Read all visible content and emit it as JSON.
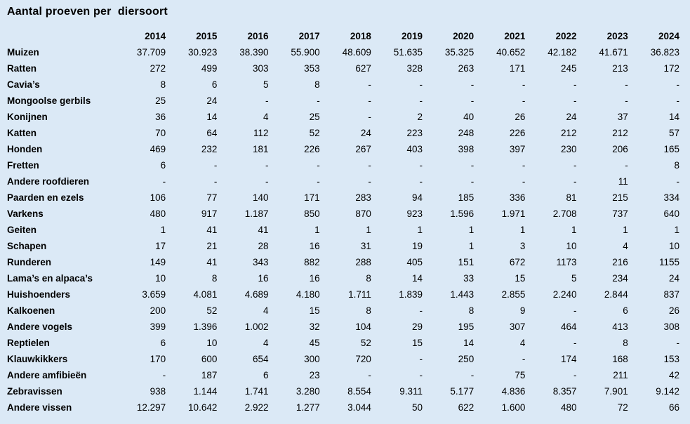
{
  "title": "Aantal proeven per  diersoort",
  "colors": {
    "background": "#dbe9f6",
    "text": "#000000"
  },
  "chart_data": {
    "type": "table",
    "title": "Aantal proeven per  diersoort",
    "year_headers": [
      "2014",
      "2015",
      "2016",
      "2017",
      "2018",
      "2019",
      "2020",
      "2021",
      "2022",
      "2023",
      "2024"
    ],
    "rows": [
      {
        "label": "Muizen",
        "values": [
          "37.709",
          "30.923",
          "38.390",
          "55.900",
          "48.609",
          "51.635",
          "35.325",
          "40.652",
          "42.182",
          "41.671",
          "36.823"
        ]
      },
      {
        "label": "Ratten",
        "values": [
          "272",
          "499",
          "303",
          "353",
          "627",
          "328",
          "263",
          "171",
          "245",
          "213",
          "172"
        ]
      },
      {
        "label": "Cavia’s",
        "values": [
          "8",
          "6",
          "5",
          "8",
          "-",
          "-",
          "-",
          "-",
          "-",
          "-",
          "-"
        ]
      },
      {
        "label": "Mongoolse gerbils",
        "values": [
          "25",
          "24",
          "-",
          "-",
          "-",
          "-",
          "-",
          "-",
          "-",
          "-",
          "-"
        ]
      },
      {
        "label": "Konijnen",
        "values": [
          "36",
          "14",
          "4",
          "25",
          "-",
          "2",
          "40",
          "26",
          "24",
          "37",
          "14"
        ]
      },
      {
        "label": "Katten",
        "values": [
          "70",
          "64",
          "112",
          "52",
          "24",
          "223",
          "248",
          "226",
          "212",
          "212",
          "57"
        ]
      },
      {
        "label": "Honden",
        "values": [
          "469",
          "232",
          "181",
          "226",
          "267",
          "403",
          "398",
          "397",
          "230",
          "206",
          "165"
        ]
      },
      {
        "label": "Fretten",
        "values": [
          "6",
          "-",
          "-",
          "-",
          "-",
          "-",
          "-",
          "-",
          "-",
          "-",
          "8"
        ]
      },
      {
        "label": "Andere roofdieren",
        "values": [
          "-",
          "-",
          "-",
          "-",
          "-",
          "-",
          "-",
          "-",
          "-",
          "11",
          "-"
        ]
      },
      {
        "label": "Paarden en ezels",
        "values": [
          "106",
          "77",
          "140",
          "171",
          "283",
          "94",
          "185",
          "336",
          "81",
          "215",
          "334"
        ]
      },
      {
        "label": "Varkens",
        "values": [
          "480",
          "917",
          "1.187",
          "850",
          "870",
          "923",
          "1.596",
          "1.971",
          "2.708",
          "737",
          "640"
        ]
      },
      {
        "label": "Geiten",
        "values": [
          "1",
          "41",
          "41",
          "1",
          "1",
          "1",
          "1",
          "1",
          "1",
          "1",
          "1"
        ]
      },
      {
        "label": "Schapen",
        "values": [
          "17",
          "21",
          "28",
          "16",
          "31",
          "19",
          "1",
          "3",
          "10",
          "4",
          "10"
        ]
      },
      {
        "label": "Runderen",
        "values": [
          "149",
          "41",
          "343",
          "882",
          "288",
          "405",
          "151",
          "672",
          "1173",
          "216",
          "1155"
        ]
      },
      {
        "label": "Lama’s en alpaca’s",
        "values": [
          "10",
          "8",
          "16",
          "16",
          "8",
          "14",
          "33",
          "15",
          "5",
          "234",
          "24"
        ]
      },
      {
        "label": "Huishoenders",
        "values": [
          "3.659",
          "4.081",
          "4.689",
          "4.180",
          "1.711",
          "1.839",
          "1.443",
          "2.855",
          "2.240",
          "2.844",
          "837"
        ]
      },
      {
        "label": "Kalkoenen",
        "values": [
          "200",
          "52",
          "4",
          "15",
          "8",
          "-",
          "8",
          "9",
          "-",
          "6",
          "26"
        ]
      },
      {
        "label": "Andere vogels",
        "values": [
          "399",
          "1.396",
          "1.002",
          "32",
          "104",
          "29",
          "195",
          "307",
          "464",
          "413",
          "308"
        ]
      },
      {
        "label": "Reptielen",
        "values": [
          "6",
          "10",
          "4",
          "45",
          "52",
          "15",
          "14",
          "4",
          "-",
          "8",
          "-"
        ]
      },
      {
        "label": "Klauwkikkers",
        "values": [
          "170",
          "600",
          "654",
          "300",
          "720",
          "-",
          "250",
          "-",
          "174",
          "168",
          "153"
        ]
      },
      {
        "label": "Andere amfibieën",
        "values": [
          "-",
          "187",
          "6",
          "23",
          "-",
          "-",
          "-",
          "75",
          "-",
          "211",
          "42"
        ]
      },
      {
        "label": "Zebravissen",
        "values": [
          "938",
          "1.144",
          "1.741",
          "3.280",
          "8.554",
          "9.311",
          "5.177",
          "4.836",
          "8.357",
          "7.901",
          "9.142"
        ]
      },
      {
        "label": "Andere vissen",
        "values": [
          "12.297",
          "10.642",
          "2.922",
          "1.277",
          "3.044",
          "50",
          "622",
          "1.600",
          "480",
          "72",
          "66"
        ]
      }
    ]
  }
}
